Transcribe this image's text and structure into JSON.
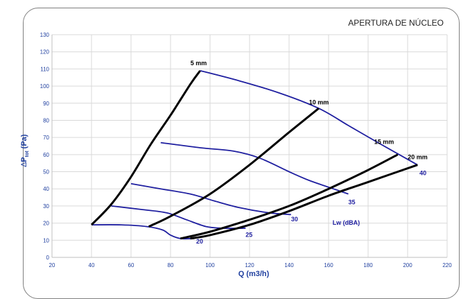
{
  "chart_data": {
    "type": "line",
    "title": "APERTURA DE NÚCLEO",
    "xlabel": "Q (m3/h)",
    "ylabel": {
      "delta": "∆",
      "p": "P",
      "sub": "tot",
      "unit": " (Pa)"
    },
    "xlim": [
      20,
      220
    ],
    "ylim": [
      0,
      130
    ],
    "xticks": [
      20,
      40,
      60,
      80,
      100,
      120,
      140,
      160,
      180,
      200,
      220
    ],
    "yticks": [
      0,
      10,
      20,
      30,
      40,
      50,
      60,
      70,
      80,
      90,
      100,
      110,
      120,
      130
    ],
    "grid": true,
    "colors": {
      "opening": "#000000",
      "noise": "#1f1fa0",
      "noise_label": "#2020a0",
      "grid": "#d9d9d9",
      "axis_text": "#1f3f9f"
    },
    "opening_curves": [
      {
        "name": "5 mm",
        "points": [
          [
            40,
            19
          ],
          [
            50,
            31
          ],
          [
            60,
            47
          ],
          [
            70,
            66
          ],
          [
            80,
            83
          ],
          [
            90,
            101
          ],
          [
            95,
            109
          ]
        ]
      },
      {
        "name": "10 mm",
        "points": [
          [
            69,
            18
          ],
          [
            80,
            24
          ],
          [
            100,
            37
          ],
          [
            120,
            54
          ],
          [
            140,
            73
          ],
          [
            155,
            87
          ]
        ]
      },
      {
        "name": "15 mm",
        "points": [
          [
            85,
            11
          ],
          [
            100,
            15
          ],
          [
            120,
            22
          ],
          [
            140,
            30
          ],
          [
            160,
            40
          ],
          [
            180,
            51
          ],
          [
            195,
            60
          ]
        ]
      },
      {
        "name": "20 mm",
        "points": [
          [
            90,
            11
          ],
          [
            100,
            13
          ],
          [
            120,
            19
          ],
          [
            140,
            27
          ],
          [
            160,
            36
          ],
          [
            180,
            44
          ],
          [
            205,
            54
          ]
        ]
      }
    ],
    "noise_curves": [
      {
        "name": "20",
        "points": [
          [
            40,
            19
          ],
          [
            55,
            19
          ],
          [
            68,
            18
          ],
          [
            76,
            16
          ],
          [
            80,
            13
          ],
          [
            85,
            11
          ],
          [
            92,
            11
          ]
        ]
      },
      {
        "name": "25",
        "points": [
          [
            50,
            30
          ],
          [
            65,
            28
          ],
          [
            78,
            26
          ],
          [
            88,
            22
          ],
          [
            98,
            18
          ],
          [
            107,
            17
          ],
          [
            118,
            17
          ]
        ]
      },
      {
        "name": "30",
        "points": [
          [
            60,
            43
          ],
          [
            75,
            40
          ],
          [
            90,
            37
          ],
          [
            102,
            33
          ],
          [
            115,
            29
          ],
          [
            130,
            26
          ],
          [
            141,
            25
          ]
        ]
      },
      {
        "name": "35",
        "points": [
          [
            75,
            67
          ],
          [
            95,
            64
          ],
          [
            112,
            62
          ],
          [
            125,
            58
          ],
          [
            140,
            50
          ],
          [
            150,
            45
          ],
          [
            160,
            41
          ],
          [
            170,
            37
          ]
        ]
      },
      {
        "name": "40",
        "points": [
          [
            95,
            109
          ],
          [
            115,
            103
          ],
          [
            135,
            96
          ],
          [
            155,
            87
          ],
          [
            170,
            77
          ],
          [
            185,
            67
          ],
          [
            205,
            54
          ]
        ]
      }
    ],
    "opening_labels": [
      {
        "text": "5 mm",
        "x": 95,
        "y": 111
      },
      {
        "text": "10 mm",
        "x": 155,
        "y": 88
      },
      {
        "text": "15 mm",
        "x": 188,
        "y": 65
      },
      {
        "text": "20 mm",
        "x": 205,
        "y": 56
      }
    ],
    "noise_labels": [
      {
        "text": "20",
        "x": 93,
        "y": 8
      },
      {
        "text": "25",
        "x": 118,
        "y": 12
      },
      {
        "text": "30",
        "x": 141,
        "y": 21
      },
      {
        "text": "35",
        "x": 170,
        "y": 31
      },
      {
        "text": "40",
        "x": 206,
        "y": 48
      },
      {
        "text": "Lw (dBA)",
        "x": 162,
        "y": 19
      }
    ]
  }
}
